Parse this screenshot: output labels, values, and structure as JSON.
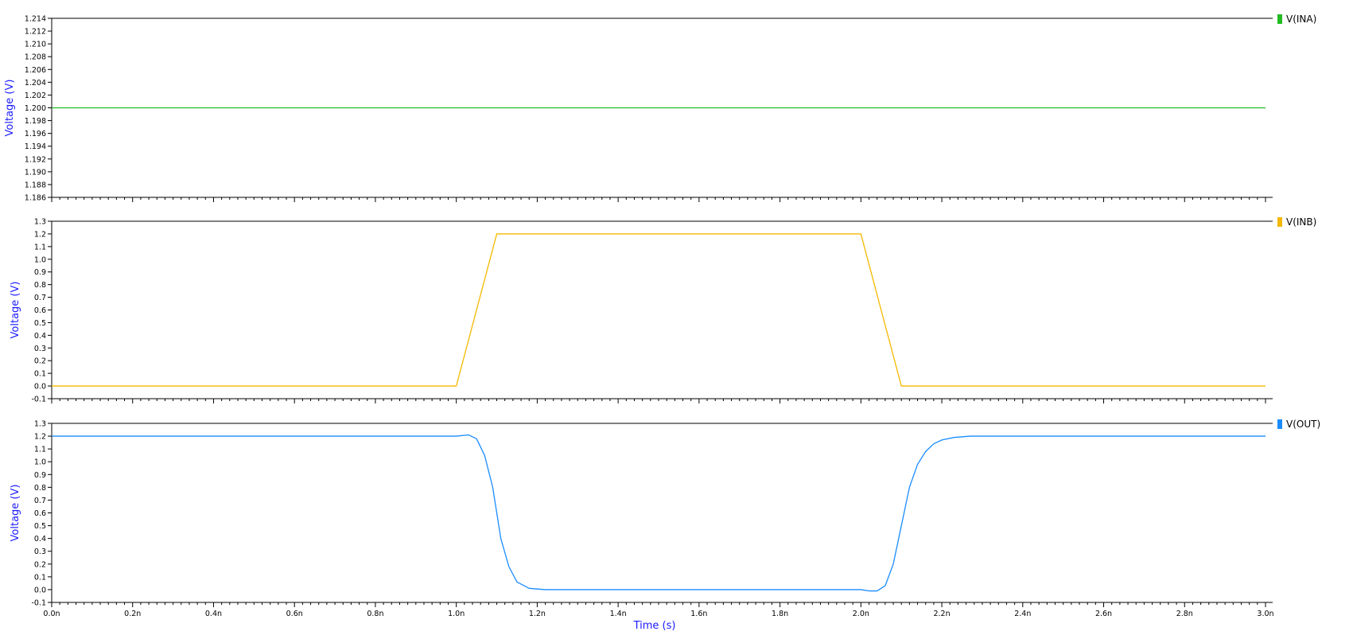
{
  "chart_data": {
    "type": "line",
    "x_axis": {
      "label": "Time (s)",
      "range": [
        0,
        3.0
      ],
      "ticks": [
        0.0,
        0.2,
        0.4,
        0.6,
        0.8,
        1.0,
        1.2,
        1.4,
        1.6,
        1.8,
        2.0,
        2.2,
        2.4,
        2.6,
        2.8,
        3.0
      ],
      "tick_labels": [
        "0.0n",
        "0.2n",
        "0.4n",
        "0.6n",
        "0.8n",
        "1.0n",
        "1.2n",
        "1.4n",
        "1.6n",
        "1.8n",
        "2.0n",
        "2.2n",
        "2.4n",
        "2.6n",
        "2.8n",
        "3.0n"
      ],
      "unit": "ns"
    },
    "panels": [
      {
        "name": "V(INA)",
        "color": "#22bb22",
        "ylabel": "Voltage (V)",
        "ylim": [
          1.186,
          1.214
        ],
        "yticks": [
          1.214,
          1.212,
          1.21,
          1.208,
          1.206,
          1.204,
          1.202,
          1.2,
          1.198,
          1.196,
          1.194,
          1.192,
          1.19,
          1.188,
          1.186
        ],
        "ytick_labels": [
          "1.214",
          "1.212",
          "1.210",
          "1.208",
          "1.206",
          "1.204",
          "1.202",
          "1.200",
          "1.198",
          "1.196",
          "1.194",
          "1.192",
          "1.190",
          "1.188",
          "1.186"
        ],
        "x": [
          0.0,
          3.0
        ],
        "y": [
          1.2,
          1.2
        ]
      },
      {
        "name": "V(INB)",
        "color": "#f5b800",
        "ylabel": "Voltage (V)",
        "ylim": [
          -0.1,
          1.3
        ],
        "yticks": [
          1.3,
          1.2,
          1.1,
          1.0,
          0.9,
          0.8,
          0.7,
          0.6,
          0.5,
          0.4,
          0.3,
          0.2,
          0.1,
          0.0,
          -0.1
        ],
        "ytick_labels": [
          "1.3",
          "1.2",
          "1.1",
          "1.0",
          "0.9",
          "0.8",
          "0.7",
          "0.6",
          "0.5",
          "0.4",
          "0.3",
          "0.2",
          "0.1",
          "0.0",
          "-0.1"
        ],
        "x": [
          0.0,
          1.0,
          1.1,
          2.0,
          2.1,
          3.0
        ],
        "y": [
          0.0,
          0.0,
          1.2,
          1.2,
          0.0,
          0.0
        ]
      },
      {
        "name": "V(OUT)",
        "color": "#1a8cff",
        "ylabel": "Voltage (V)",
        "ylim": [
          -0.1,
          1.3
        ],
        "yticks": [
          1.3,
          1.2,
          1.1,
          1.0,
          0.9,
          0.8,
          0.7,
          0.6,
          0.5,
          0.4,
          0.3,
          0.2,
          0.1,
          0.0,
          -0.1
        ],
        "ytick_labels": [
          "1.3",
          "1.2",
          "1.1",
          "1.0",
          "0.9",
          "0.8",
          "0.7",
          "0.6",
          "0.5",
          "0.4",
          "0.3",
          "0.2",
          "0.1",
          "0.0",
          "-0.1"
        ],
        "x": [
          0.0,
          1.0,
          1.03,
          1.05,
          1.07,
          1.09,
          1.1,
          1.11,
          1.13,
          1.15,
          1.18,
          1.22,
          1.3,
          1.6,
          2.0,
          2.02,
          2.04,
          2.06,
          2.08,
          2.1,
          2.12,
          2.14,
          2.16,
          2.18,
          2.2,
          2.23,
          2.27,
          3.0
        ],
        "y": [
          1.2,
          1.2,
          1.21,
          1.18,
          1.05,
          0.8,
          0.6,
          0.4,
          0.18,
          0.06,
          0.01,
          0.0,
          0.0,
          0.0,
          0.0,
          -0.01,
          -0.01,
          0.03,
          0.2,
          0.5,
          0.8,
          0.98,
          1.08,
          1.14,
          1.17,
          1.19,
          1.2,
          1.2
        ]
      }
    ],
    "grid": false,
    "legend": "right"
  }
}
